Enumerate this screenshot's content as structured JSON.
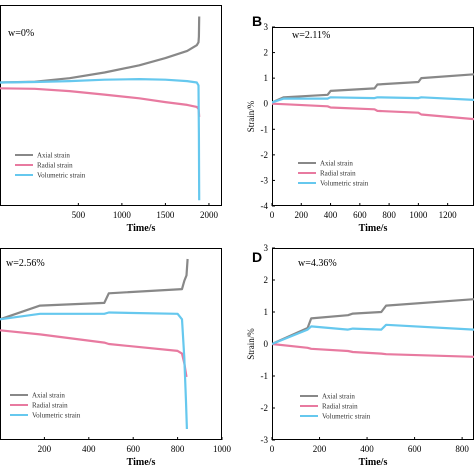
{
  "chart_data": [
    {
      "type": "line",
      "panel_letter": "",
      "annotation": "w=0%",
      "xlabel": "Time/s",
      "ylabel": "",
      "xlim": [
        -400,
        2150
      ],
      "ylim": [
        -4,
        3
      ],
      "x_ticks": [
        500,
        1000,
        1500,
        2000
      ],
      "y_ticks": [],
      "legend": [
        "Axial strain",
        "Radial strain",
        "Volumetric strain"
      ],
      "series": [
        {
          "name": "Axial strain",
          "color": "#888888",
          "x": [
            -400,
            0,
            400,
            800,
            1200,
            1500,
            1750,
            1860,
            1880,
            1885,
            1888
          ],
          "y": [
            0.3,
            0.33,
            0.45,
            0.65,
            0.9,
            1.15,
            1.4,
            1.6,
            1.7,
            1.9,
            2.6
          ]
        },
        {
          "name": "Radial strain",
          "color": "#e87aa0",
          "x": [
            -400,
            0,
            400,
            800,
            1200,
            1500,
            1750,
            1860,
            1880,
            1885,
            1888
          ],
          "y": [
            0.1,
            0.08,
            0.0,
            -0.12,
            -0.25,
            -0.38,
            -0.48,
            -0.55,
            -0.62,
            -0.75,
            -0.9
          ]
        },
        {
          "name": "Volumetric strain",
          "color": "#66c8ee",
          "x": [
            -400,
            0,
            400,
            800,
            1200,
            1500,
            1750,
            1860,
            1880,
            1885,
            1888
          ],
          "y": [
            0.3,
            0.32,
            0.35,
            0.4,
            0.42,
            0.4,
            0.35,
            0.3,
            0.2,
            -1.5,
            -3.8
          ]
        }
      ]
    },
    {
      "type": "line",
      "panel_letter": "B",
      "annotation": "w=2.11%",
      "xlabel": "Time/s",
      "ylabel": "Strain/%",
      "xlim": [
        0,
        1380
      ],
      "ylim": [
        -4,
        3
      ],
      "x_ticks": [
        0,
        200,
        400,
        600,
        800,
        1000,
        1200
      ],
      "y_ticks": [
        -4,
        -3,
        -2,
        -1,
        0,
        1,
        2,
        3
      ],
      "legend": [
        "Axial strain",
        "Radial strain",
        "Volumetric strain"
      ],
      "series": [
        {
          "name": "Axial strain",
          "color": "#888888",
          "x": [
            0,
            80,
            380,
            400,
            700,
            720,
            1000,
            1020,
            1380
          ],
          "y": [
            0.05,
            0.25,
            0.35,
            0.5,
            0.6,
            0.75,
            0.85,
            1.0,
            1.15
          ]
        },
        {
          "name": "Radial strain",
          "color": "#e87aa0",
          "x": [
            0,
            80,
            380,
            400,
            700,
            720,
            1000,
            1020,
            1380
          ],
          "y": [
            0.0,
            -0.02,
            -0.1,
            -0.15,
            -0.22,
            -0.28,
            -0.35,
            -0.42,
            -0.6
          ]
        },
        {
          "name": "Volumetric strain",
          "color": "#66c8ee",
          "x": [
            0,
            80,
            380,
            400,
            700,
            720,
            1000,
            1020,
            1380
          ],
          "y": [
            0.05,
            0.2,
            0.2,
            0.25,
            0.22,
            0.25,
            0.22,
            0.25,
            0.15
          ]
        }
      ]
    },
    {
      "type": "line",
      "panel_letter": "",
      "annotation": "w=2.56%",
      "xlabel": "Time/s",
      "ylabel": "",
      "xlim": [
        0,
        1000
      ],
      "ylim": [
        -4,
        3
      ],
      "x_ticks": [
        200,
        400,
        600,
        800,
        1000
      ],
      "y_ticks": [],
      "legend": [
        "Axial strain",
        "Radial strain",
        "Volumetric strain"
      ],
      "series": [
        {
          "name": "Axial strain",
          "color": "#888888",
          "x": [
            0,
            180,
            470,
            490,
            820,
            830,
            840,
            845
          ],
          "y": [
            0.4,
            0.9,
            1.0,
            1.35,
            1.5,
            1.8,
            2.0,
            2.6
          ]
        },
        {
          "name": "Radial strain",
          "color": "#e87aa0",
          "x": [
            0,
            180,
            470,
            490,
            800,
            820,
            830,
            840
          ],
          "y": [
            0.0,
            -0.15,
            -0.45,
            -0.5,
            -0.75,
            -0.85,
            -1.2,
            -1.7
          ]
        },
        {
          "name": "Volumetric strain",
          "color": "#66c8ee",
          "x": [
            0,
            180,
            470,
            490,
            800,
            820,
            830,
            838,
            842
          ],
          "y": [
            0.4,
            0.6,
            0.6,
            0.65,
            0.6,
            0.4,
            -1.0,
            -2.6,
            -3.6
          ]
        }
      ]
    },
    {
      "type": "line",
      "panel_letter": "D",
      "annotation": "w=4.36%",
      "xlabel": "Time/s",
      "ylabel": "Strain/%",
      "xlim": [
        0,
        850
      ],
      "ylim": [
        -3,
        3
      ],
      "x_ticks": [
        0,
        200,
        400,
        600,
        800
      ],
      "y_ticks": [
        -3,
        -2,
        -1,
        0,
        1,
        2,
        3
      ],
      "legend": [
        "Axial strain",
        "Radial strain",
        "Volumetric strain"
      ],
      "series": [
        {
          "name": "Axial strain",
          "color": "#888888",
          "x": [
            0,
            150,
            165,
            320,
            340,
            460,
            480,
            850
          ],
          "y": [
            0.0,
            0.5,
            0.8,
            0.9,
            0.95,
            1.0,
            1.2,
            1.4
          ]
        },
        {
          "name": "Radial strain",
          "color": "#e87aa0",
          "x": [
            0,
            150,
            165,
            320,
            340,
            460,
            480,
            850
          ],
          "y": [
            0.0,
            -0.12,
            -0.15,
            -0.22,
            -0.25,
            -0.3,
            -0.32,
            -0.4
          ]
        },
        {
          "name": "Volumetric strain",
          "color": "#66c8ee",
          "x": [
            0,
            150,
            165,
            320,
            340,
            460,
            480,
            850
          ],
          "y": [
            0.0,
            0.45,
            0.55,
            0.45,
            0.48,
            0.45,
            0.6,
            0.45
          ]
        }
      ]
    }
  ]
}
